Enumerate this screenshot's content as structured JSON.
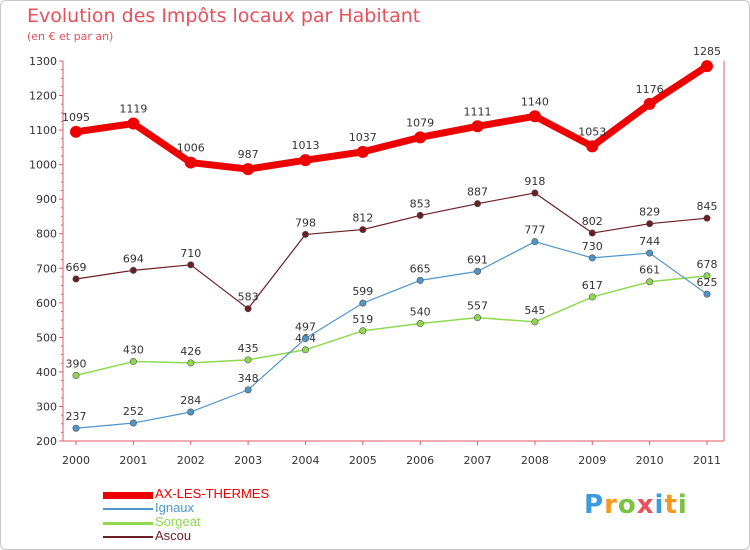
{
  "chart_data": {
    "type": "line",
    "title": "Evolution des Impôts locaux par Habitant",
    "subtitle": "(en € et par an)",
    "xlabel": "",
    "ylabel": "",
    "ylim": [
      200,
      1300
    ],
    "yticks": [
      200,
      300,
      400,
      500,
      600,
      700,
      800,
      900,
      1000,
      1100,
      1200,
      1300
    ],
    "grid": false,
    "legend_position": "bottom-left",
    "categories": [
      "2000",
      "2001",
      "2002",
      "2003",
      "2004",
      "2005",
      "2006",
      "2007",
      "2008",
      "2009",
      "2010",
      "2011"
    ],
    "series": [
      {
        "name": "AX-LES-THERMES",
        "color": "#ee0000",
        "values": [
          1095,
          1119,
          1006,
          987,
          1013,
          1037,
          1079,
          1111,
          1140,
          1053,
          1176,
          1285
        ]
      },
      {
        "name": "Ignaux",
        "color": "#4f95c9",
        "values": [
          237,
          252,
          284,
          348,
          497,
          599,
          665,
          691,
          777,
          730,
          744,
          625
        ]
      },
      {
        "name": "Sorgeat",
        "color": "#8fd84f",
        "values": [
          390,
          430,
          426,
          435,
          464,
          519,
          540,
          557,
          545,
          617,
          661,
          678
        ]
      },
      {
        "name": "Ascou",
        "color": "#6b1f24",
        "values": [
          669,
          694,
          710,
          583,
          798,
          812,
          853,
          887,
          918,
          802,
          829,
          845
        ]
      }
    ]
  },
  "brand": {
    "letters": [
      "P",
      "r",
      "o",
      "x",
      "i",
      "t",
      "i"
    ],
    "colors": [
      "#3a9be0",
      "#f29a1d",
      "#7cc242",
      "#e8505b",
      "#3a9be0",
      "#f29a1d",
      "#7cc242"
    ]
  }
}
